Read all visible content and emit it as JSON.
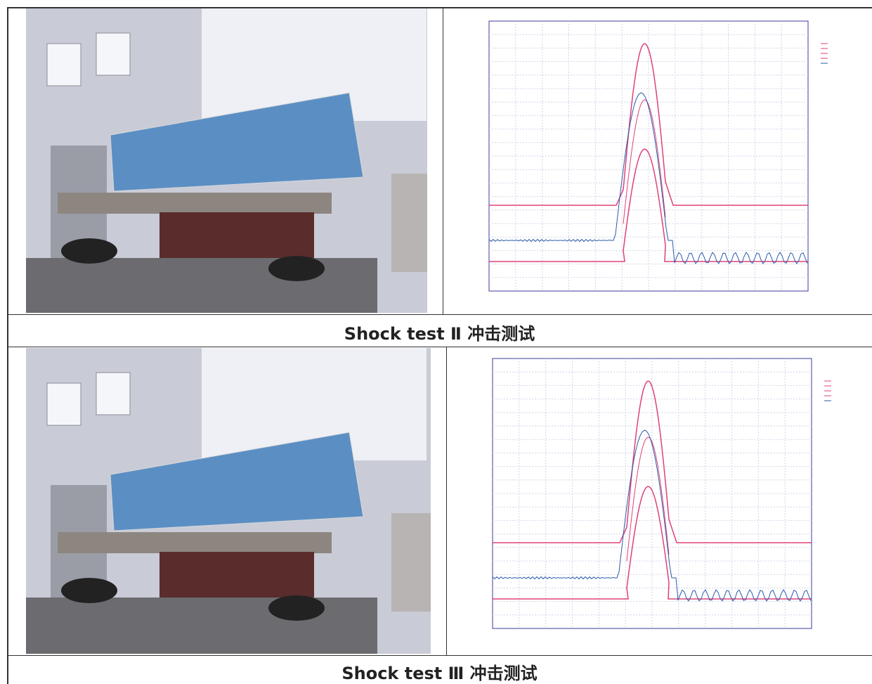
{
  "sections": [
    {
      "caption": "Shock test Ⅱ  冲击测试"
    },
    {
      "caption": "Shock test Ⅲ  冲击测试"
    }
  ]
}
